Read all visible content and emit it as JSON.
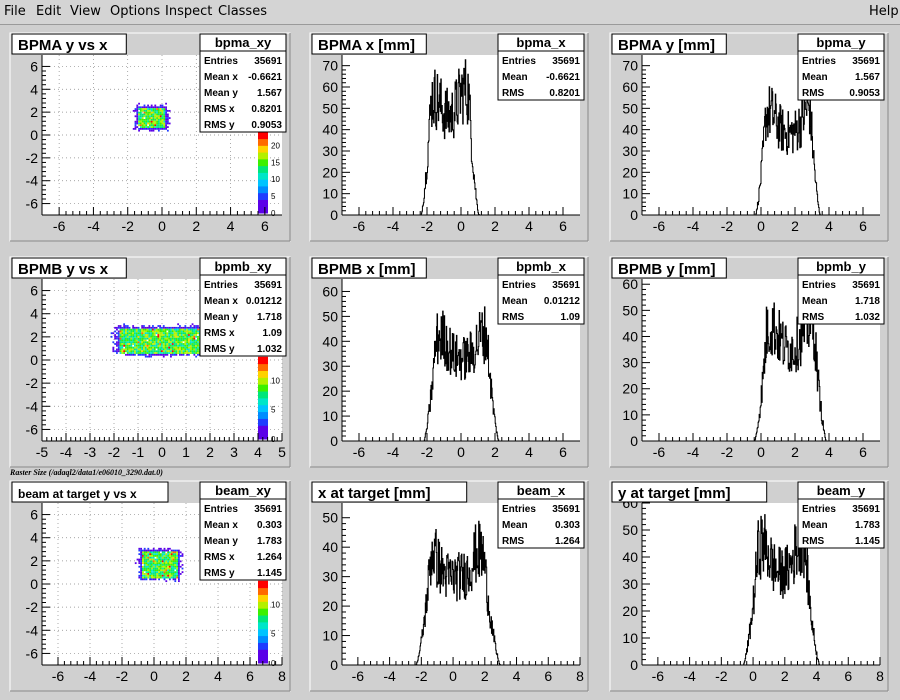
{
  "menu": {
    "items": [
      "File",
      "Edit",
      "View",
      "Options",
      "Inspect",
      "Classes"
    ],
    "help": "Help"
  },
  "raster_label": "Raster Size (/adaql2/data1/e06010_3290.dat.0)",
  "colors": {
    "hist_line": "#000000",
    "axis_red": "#cc0000",
    "frame_bg": "#ffffff",
    "pad_bg": "#d0d0d0"
  },
  "chart_data": [
    {
      "id": "bpma_xy",
      "type": "heatmap",
      "title": "BPMA y vs x",
      "stats_title": "bpma_xy",
      "stats": [
        [
          "Entries",
          "35691"
        ],
        [
          "Mean x",
          "-0.6621"
        ],
        [
          "Mean y",
          "1.567"
        ],
        [
          "RMS x",
          "0.8201"
        ],
        [
          "RMS y",
          "0.9053"
        ]
      ],
      "xlim": [
        -7,
        7
      ],
      "ylim": [
        -7,
        7
      ],
      "xticks": [
        "-6",
        "-4",
        "-2",
        "0",
        "2",
        "4",
        "6"
      ],
      "yticks": [
        "-6",
        "-4",
        "-2",
        "0",
        "2",
        "4",
        "6"
      ],
      "blob": {
        "cx": -0.66,
        "cy": 1.57,
        "wx": 1.6,
        "wy": 1.8
      },
      "palette": [
        "0",
        "5",
        "10",
        "15",
        "20"
      ]
    },
    {
      "id": "bpma_x",
      "type": "bar",
      "title": "BPMA x [mm]",
      "stats_title": "bpma_x",
      "stats": [
        [
          "Entries",
          "35691"
        ],
        [
          "Mean",
          "-0.6621"
        ],
        [
          "RMS",
          "0.8201"
        ]
      ],
      "xlim": [
        -7,
        7
      ],
      "ylim": [
        0,
        75
      ],
      "xticks": [
        "-6",
        "-4",
        "-2",
        "0",
        "2",
        "4",
        "6"
      ],
      "yticks": [
        "0",
        "10",
        "20",
        "30",
        "40",
        "50",
        "60",
        "70"
      ],
      "profile": {
        "center": -0.66,
        "halfwidth": 1.4,
        "edge": 0.3,
        "level": 45,
        "peaks": [
          [
            -1.6,
            62
          ],
          [
            0.2,
            68
          ]
        ]
      }
    },
    {
      "id": "bpma_y",
      "type": "bar",
      "title": "BPMA y [mm]",
      "stats_title": "bpma_y",
      "stats": [
        [
          "Entries",
          "35691"
        ],
        [
          "Mean",
          "1.567"
        ],
        [
          "RMS",
          "0.9053"
        ]
      ],
      "xlim": [
        -7,
        7
      ],
      "ylim": [
        0,
        75
      ],
      "xticks": [
        "-6",
        "-4",
        "-2",
        "0",
        "2",
        "4",
        "6"
      ],
      "yticks": [
        "0",
        "10",
        "20",
        "30",
        "40",
        "50",
        "60",
        "70"
      ],
      "profile": {
        "center": 1.57,
        "halfwidth": 1.6,
        "edge": 0.3,
        "level": 38,
        "peaks": [
          [
            0.5,
            55
          ],
          [
            2.8,
            58
          ]
        ]
      }
    },
    {
      "id": "bpmb_xy",
      "type": "heatmap",
      "title": "BPMB y vs x",
      "stats_title": "bpmb_xy",
      "stats": [
        [
          "Entries",
          "35691"
        ],
        [
          "Mean x",
          "0.01212"
        ],
        [
          "Mean y",
          "1.718"
        ],
        [
          "RMS x",
          "1.09"
        ],
        [
          "RMS y",
          "1.032"
        ]
      ],
      "xlim": [
        -5,
        5
      ],
      "ylim": [
        -7,
        7
      ],
      "xticks": [
        "-5",
        "-4",
        "-3",
        "-2",
        "-1",
        "0",
        "1",
        "2",
        "3",
        "4",
        "5"
      ],
      "yticks": [
        "-6",
        "-4",
        "-2",
        "0",
        "2",
        "4",
        "6"
      ],
      "blob": {
        "cx": 0.01,
        "cy": 1.72,
        "wx": 3.6,
        "wy": 2.2
      },
      "palette": [
        "0",
        "5",
        "10"
      ]
    },
    {
      "id": "bpmb_x",
      "type": "bar",
      "title": "BPMB x [mm]",
      "stats_title": "bpmb_x",
      "stats": [
        [
          "Entries",
          "35691"
        ],
        [
          "Mean",
          "0.01212"
        ],
        [
          "RMS",
          "1.09"
        ]
      ],
      "xlim": [
        -7,
        7
      ],
      "ylim": [
        0,
        65
      ],
      "xticks": [
        "-6",
        "-4",
        "-2",
        "0",
        "2",
        "4",
        "6"
      ],
      "yticks": [
        "0",
        "10",
        "20",
        "30",
        "40",
        "50",
        "60"
      ],
      "profile": {
        "center": 0.01,
        "halfwidth": 1.85,
        "edge": 0.35,
        "level": 33,
        "peaks": [
          [
            -1.2,
            48
          ],
          [
            1.3,
            50
          ]
        ]
      }
    },
    {
      "id": "bpmb_y",
      "type": "bar",
      "title": "BPMB y [mm]",
      "stats_title": "bpmb_y",
      "stats": [
        [
          "Entries",
          "35691"
        ],
        [
          "Mean",
          "1.718"
        ],
        [
          "RMS",
          "1.032"
        ]
      ],
      "xlim": [
        -7,
        7
      ],
      "ylim": [
        0,
        62
      ],
      "xticks": [
        "-6",
        "-4",
        "-2",
        "0",
        "2",
        "4",
        "6"
      ],
      "yticks": [
        "0",
        "10",
        "20",
        "30",
        "40",
        "50",
        "60"
      ],
      "profile": {
        "center": 1.72,
        "halfwidth": 1.75,
        "edge": 0.35,
        "level": 35,
        "peaks": [
          [
            0.6,
            50
          ],
          [
            2.8,
            52
          ]
        ]
      }
    },
    {
      "id": "beam_xy",
      "type": "heatmap",
      "title": "beam at target y vs x",
      "stats_title": "beam_xy",
      "stats": [
        [
          "Entries",
          "35691"
        ],
        [
          "Mean x",
          "0.303"
        ],
        [
          "Mean y",
          "1.783"
        ],
        [
          "RMS x",
          "1.264"
        ],
        [
          "RMS y",
          "1.145"
        ]
      ],
      "xlim": [
        -7,
        8
      ],
      "ylim": [
        -7,
        7
      ],
      "xticks": [
        "-6",
        "-4",
        "-2",
        "0",
        "2",
        "4",
        "6",
        "8"
      ],
      "yticks": [
        "-6",
        "-4",
        "-2",
        "0",
        "2",
        "4",
        "6"
      ],
      "blob": {
        "cx": 0.3,
        "cy": 1.78,
        "wx": 2.3,
        "wy": 2.3
      },
      "palette": [
        "0",
        "5",
        "10"
      ]
    },
    {
      "id": "beam_x",
      "type": "bar",
      "title": "x at target [mm]",
      "stats_title": "beam_x",
      "stats": [
        [
          "Entries",
          "35691"
        ],
        [
          "Mean",
          "0.303"
        ],
        [
          "RMS",
          "1.264"
        ]
      ],
      "xlim": [
        -7,
        8
      ],
      "ylim": [
        0,
        55
      ],
      "xticks": [
        "-6",
        "-4",
        "-2",
        "0",
        "2",
        "4",
        "6",
        "8"
      ],
      "yticks": [
        "0",
        "10",
        "20",
        "30",
        "40",
        "50"
      ],
      "profile": {
        "center": 0.3,
        "halfwidth": 2.15,
        "edge": 0.5,
        "level": 30,
        "peaks": [
          [
            -1.4,
            45
          ],
          [
            1.6,
            44
          ]
        ]
      }
    },
    {
      "id": "beam_y",
      "type": "bar",
      "title": "y at target [mm]",
      "stats_title": "beam_y",
      "stats": [
        [
          "Entries",
          "35691"
        ],
        [
          "Mean",
          "1.783"
        ],
        [
          "RMS",
          "1.145"
        ]
      ],
      "xlim": [
        -7,
        8
      ],
      "ylim": [
        0,
        60
      ],
      "xticks": [
        "-6",
        "-4",
        "-2",
        "0",
        "2",
        "4",
        "6",
        "8"
      ],
      "yticks": [
        "0",
        "10",
        "20",
        "30",
        "40",
        "50",
        "60"
      ],
      "profile": {
        "center": 1.78,
        "halfwidth": 1.95,
        "edge": 0.45,
        "level": 34,
        "peaks": [
          [
            0.6,
            52
          ],
          [
            3.0,
            54
          ]
        ]
      }
    }
  ]
}
